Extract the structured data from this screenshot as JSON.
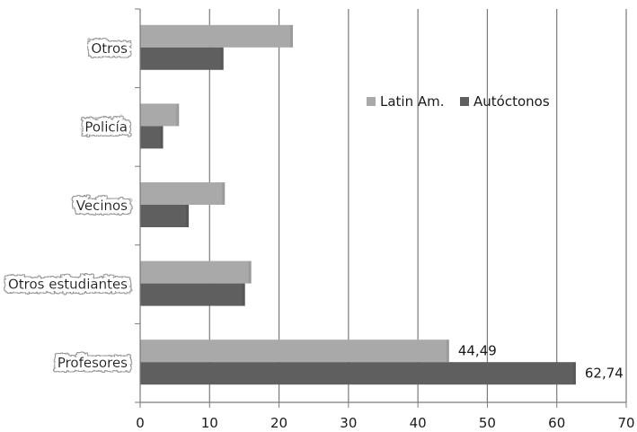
{
  "chart_data": {
    "type": "bar",
    "orientation": "horizontal",
    "categories": [
      "Otros",
      "Policía",
      "Vecinos",
      "Otros estudiantes",
      "Profesores"
    ],
    "series": [
      {
        "name": "Latin Am.",
        "values": [
          22,
          5.6,
          12.2,
          16,
          44.49
        ],
        "color": "#a9a9a9"
      },
      {
        "name": "Autóctonos",
        "values": [
          12,
          3.3,
          7,
          15.1,
          62.74
        ],
        "color": "#5f5f5f"
      }
    ],
    "data_labels": [
      {
        "series": 0,
        "category": 4,
        "text": "44,49"
      },
      {
        "series": 1,
        "category": 4,
        "text": "62,74"
      }
    ],
    "xlim": [
      0,
      70
    ],
    "x_ticks": [
      "0",
      "10",
      "20",
      "30",
      "40",
      "50",
      "60",
      "70"
    ],
    "grid": "vertical",
    "legend_position": "top-right-inside",
    "title": "",
    "xlabel": "",
    "ylabel": ""
  }
}
